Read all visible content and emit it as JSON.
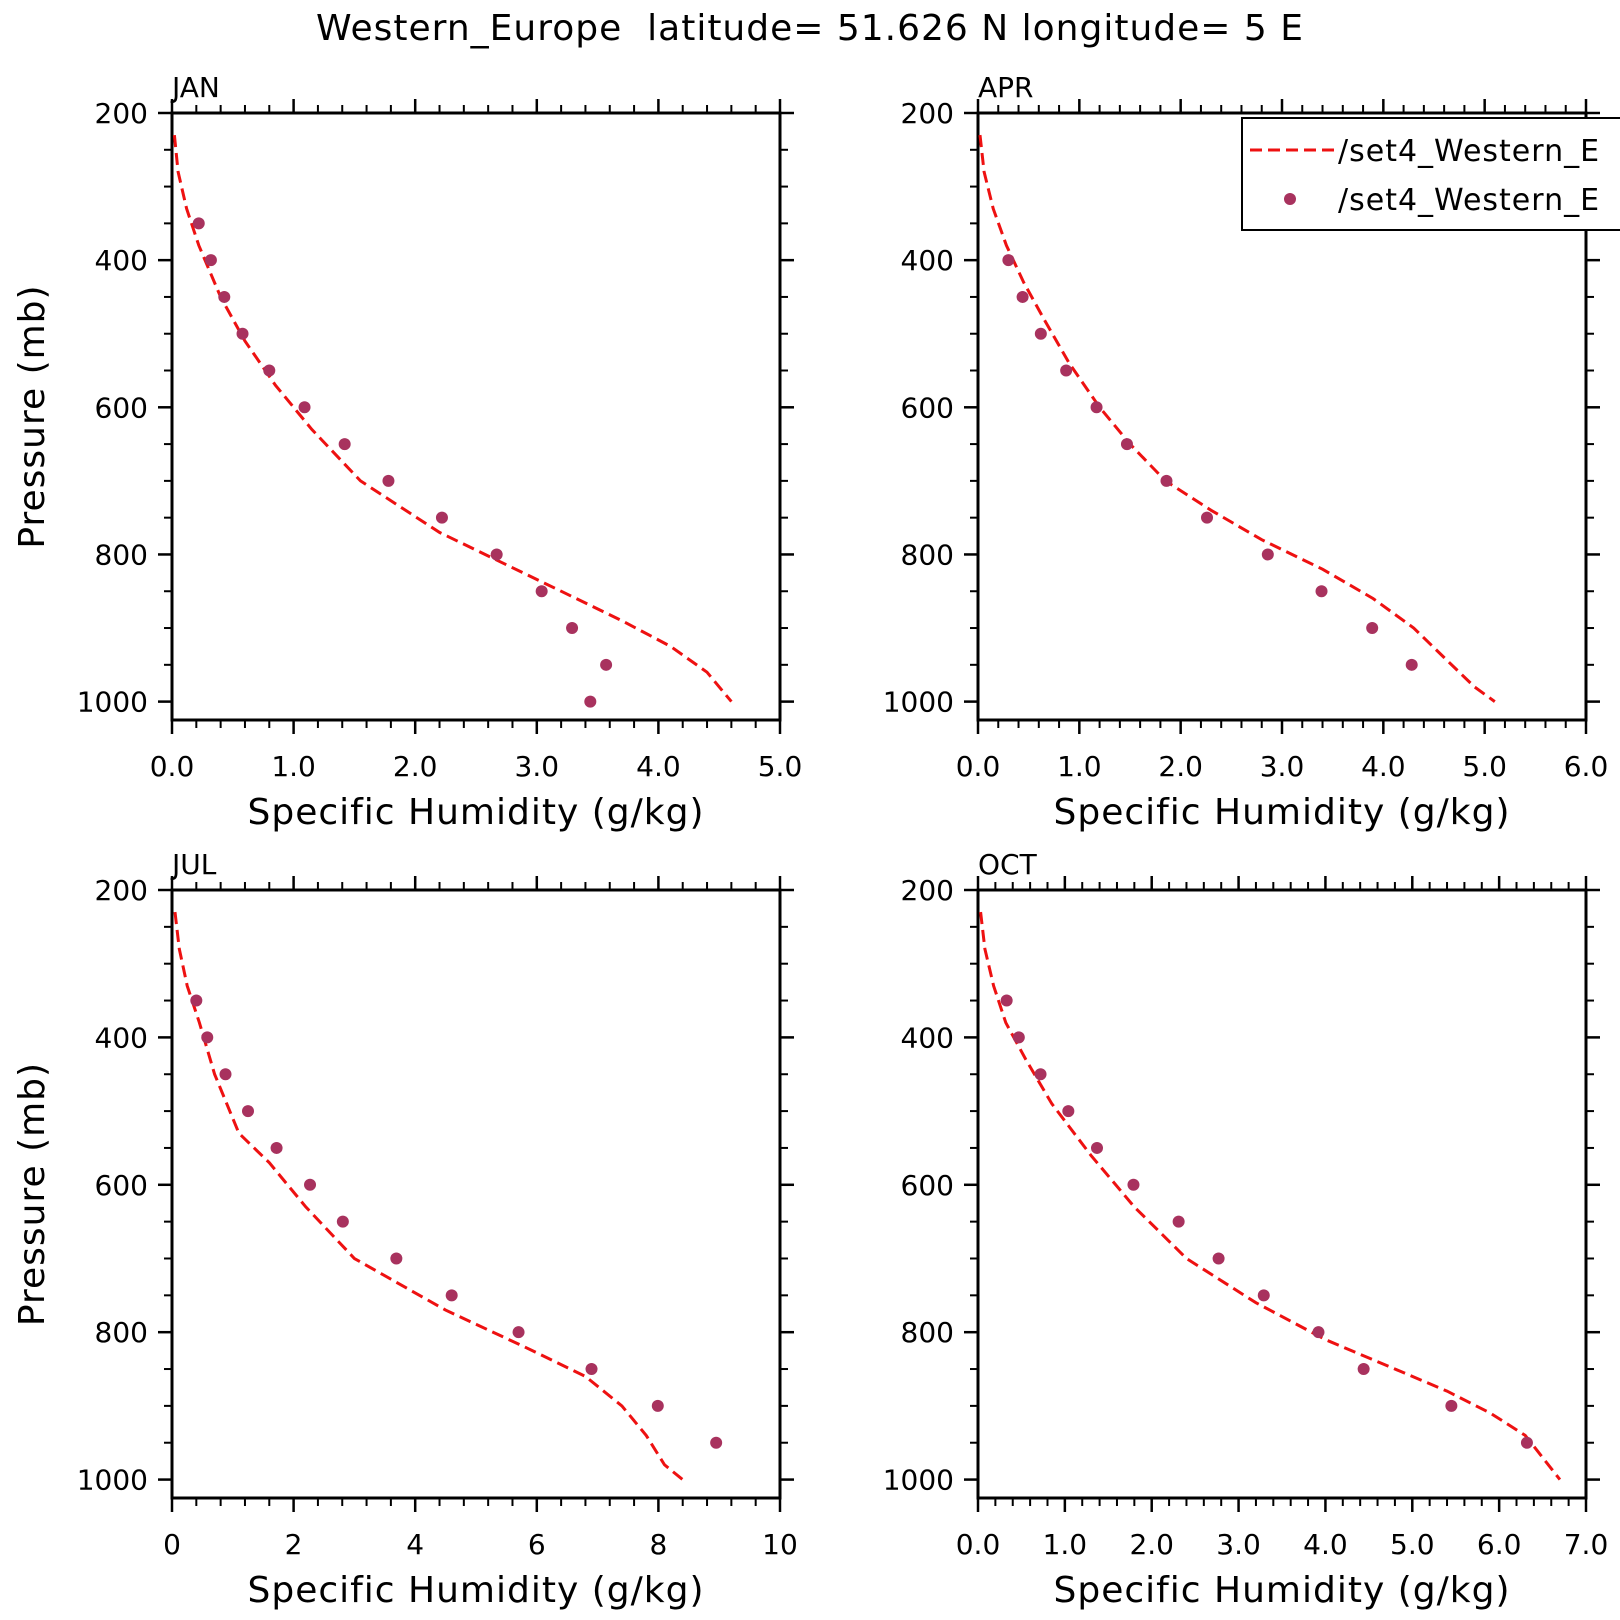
{
  "title": "Western_Europe  latitude= 51.626 N longitude= 5 E",
  "colors": {
    "model_line": "#ee1111",
    "obs_points": "#a8325e",
    "frame": "#000000"
  },
  "legend": {
    "placement": "top-right of APR panel",
    "entries": [
      {
        "label": "/set4_Western_E",
        "style": "dashed-line"
      },
      {
        "label": "/set4_Western_E",
        "style": "dot"
      }
    ]
  },
  "chart_data": [
    {
      "type": "line",
      "panel_label": "JAN",
      "xlabel": "Specific Humidity (g/kg)",
      "ylabel": "Pressure (mb)",
      "xlim": [
        0,
        5
      ],
      "ylim": [
        200,
        1025
      ],
      "y_inverted": true,
      "xticks": [
        0,
        1,
        2,
        3,
        4,
        5
      ],
      "xtick_labels": [
        "0.0",
        "1.0",
        "2.0",
        "3.0",
        "4.0",
        "5.0"
      ],
      "yticks": [
        200,
        400,
        600,
        800,
        1000
      ],
      "ytick_labels": [
        "200",
        "400",
        "600",
        "800",
        "1000"
      ],
      "series": [
        {
          "style": "dashed-line",
          "x": [
            0.02,
            0.05,
            0.12,
            0.22,
            0.4,
            0.6,
            0.85,
            1.15,
            1.55,
            2.2,
            2.7,
            3.2,
            3.7,
            4.1,
            4.4,
            4.6
          ],
          "y": [
            230,
            280,
            330,
            380,
            450,
            510,
            570,
            630,
            700,
            770,
            810,
            850,
            890,
            925,
            960,
            1000
          ]
        },
        {
          "style": "dot",
          "x": [
            0.22,
            0.32,
            0.43,
            0.58,
            0.8,
            1.09,
            1.42,
            1.78,
            2.22,
            2.67,
            3.04,
            3.29,
            3.57,
            3.44
          ],
          "y": [
            350,
            400,
            450,
            500,
            550,
            600,
            650,
            700,
            750,
            800,
            850,
            900,
            950,
            1000
          ]
        }
      ]
    },
    {
      "type": "line",
      "panel_label": "APR",
      "xlabel": "Specific Humidity (g/kg)",
      "ylabel": "",
      "xlim": [
        0,
        6
      ],
      "ylim": [
        200,
        1025
      ],
      "y_inverted": true,
      "xticks": [
        0,
        1,
        2,
        3,
        4,
        5,
        6
      ],
      "xtick_labels": [
        "0.0",
        "1.0",
        "2.0",
        "3.0",
        "4.0",
        "5.0",
        "6.0"
      ],
      "yticks": [
        200,
        400,
        600,
        800,
        1000
      ],
      "ytick_labels": [
        "200",
        "400",
        "600",
        "800",
        "1000"
      ],
      "series": [
        {
          "style": "dashed-line",
          "x": [
            0.02,
            0.06,
            0.15,
            0.28,
            0.45,
            0.65,
            0.9,
            1.2,
            1.5,
            1.85,
            2.3,
            2.8,
            3.4,
            3.9,
            4.3,
            4.6,
            4.9,
            5.1
          ],
          "y": [
            230,
            280,
            330,
            380,
            430,
            480,
            540,
            600,
            650,
            700,
            740,
            780,
            820,
            860,
            900,
            940,
            980,
            1000
          ]
        },
        {
          "style": "dot",
          "x": [
            0.3,
            0.44,
            0.62,
            0.87,
            1.17,
            1.47,
            1.86,
            2.26,
            2.86,
            3.39,
            3.89,
            4.28
          ],
          "y": [
            400,
            450,
            500,
            550,
            600,
            650,
            700,
            750,
            800,
            850,
            900,
            950
          ]
        }
      ]
    },
    {
      "type": "line",
      "panel_label": "JUL",
      "xlabel": "Specific Humidity (g/kg)",
      "ylabel": "Pressure (mb)",
      "xlim": [
        0,
        10
      ],
      "ylim": [
        200,
        1025
      ],
      "y_inverted": true,
      "xticks": [
        0,
        2,
        4,
        6,
        8,
        10
      ],
      "xtick_labels": [
        "0",
        "2",
        "4",
        "6",
        "8",
        "10"
      ],
      "yticks": [
        200,
        400,
        600,
        800,
        1000
      ],
      "ytick_labels": [
        "200",
        "400",
        "600",
        "800",
        "1000"
      ],
      "series": [
        {
          "style": "dashed-line",
          "x": [
            0.05,
            0.12,
            0.25,
            0.45,
            0.7,
            1.1,
            1.6,
            2.2,
            3.0,
            4.5,
            5.8,
            6.8,
            7.4,
            7.8,
            8.1,
            8.4
          ],
          "y": [
            230,
            280,
            330,
            380,
            450,
            530,
            570,
            630,
            700,
            770,
            820,
            860,
            900,
            940,
            980,
            1000
          ]
        },
        {
          "style": "dot",
          "x": [
            0.4,
            0.58,
            0.88,
            1.25,
            1.72,
            2.27,
            2.81,
            3.69,
            4.6,
            5.7,
            6.9,
            7.99,
            8.95
          ],
          "y": [
            350,
            400,
            450,
            500,
            550,
            600,
            650,
            700,
            750,
            800,
            850,
            900,
            950
          ]
        }
      ]
    },
    {
      "type": "line",
      "panel_label": "OCT",
      "xlabel": "Specific Humidity (g/kg)",
      "ylabel": "",
      "xlim": [
        0,
        7
      ],
      "ylim": [
        200,
        1025
      ],
      "y_inverted": true,
      "xticks": [
        0,
        1,
        2,
        3,
        4,
        5,
        6,
        7
      ],
      "xtick_labels": [
        "0.0",
        "1.0",
        "2.0",
        "3.0",
        "4.0",
        "5.0",
        "6.0",
        "7.0"
      ],
      "yticks": [
        200,
        400,
        600,
        800,
        1000
      ],
      "ytick_labels": [
        "200",
        "400",
        "600",
        "800",
        "1000"
      ],
      "series": [
        {
          "style": "dashed-line",
          "x": [
            0.03,
            0.08,
            0.18,
            0.32,
            0.55,
            0.85,
            1.3,
            1.8,
            2.4,
            3.2,
            4.0,
            4.8,
            5.4,
            5.9,
            6.3,
            6.5,
            6.7
          ],
          "y": [
            230,
            280,
            330,
            380,
            430,
            490,
            560,
            630,
            700,
            760,
            810,
            850,
            880,
            910,
            940,
            970,
            1000
          ]
        },
        {
          "style": "dot",
          "x": [
            0.33,
            0.47,
            0.72,
            1.04,
            1.37,
            1.79,
            2.31,
            2.77,
            3.29,
            3.92,
            4.44,
            5.45,
            6.32
          ],
          "y": [
            350,
            400,
            450,
            500,
            550,
            600,
            650,
            700,
            750,
            800,
            850,
            900,
            950
          ]
        }
      ]
    }
  ]
}
